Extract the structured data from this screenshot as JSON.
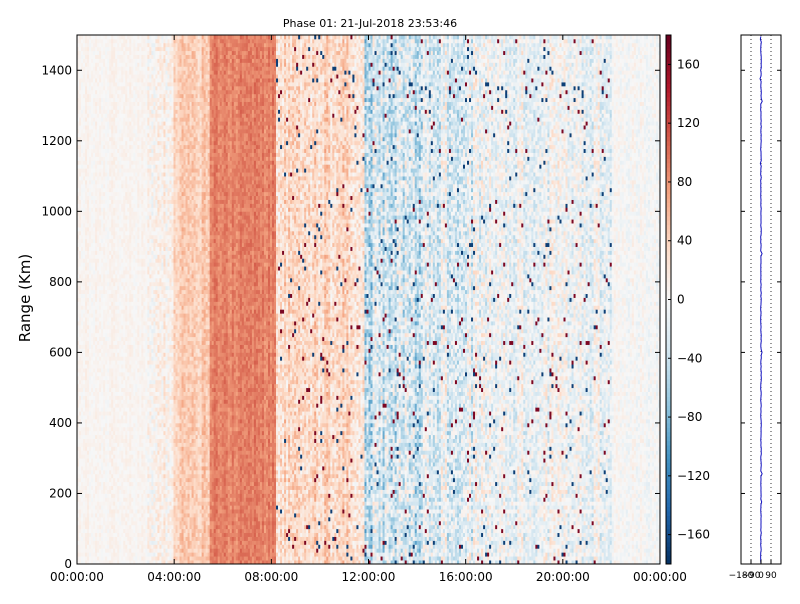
{
  "chart_data": [
    {
      "type": "heatmap",
      "title": "Phase 01: 21-Jul-2018 23:53:46",
      "xlabel": "",
      "ylabel": "Range (Km)",
      "xlim_hours": [
        0,
        24
      ],
      "ylim": [
        0,
        1500
      ],
      "xtick_values": [
        0,
        4,
        8,
        12,
        16,
        20,
        24
      ],
      "xtick_labels": [
        "00:00:00",
        "04:00:00",
        "08:00:00",
        "12:00:00",
        "16:00:00",
        "20:00:00",
        "00:00:00"
      ],
      "ytick_values": [
        0,
        200,
        400,
        600,
        800,
        1000,
        1200,
        1400
      ],
      "ytick_labels": [
        "0",
        "200",
        "400",
        "600",
        "800",
        "1000",
        "1200",
        "1400"
      ],
      "colormap": "RdBu_r",
      "colorbar": {
        "vmin": -180,
        "vmax": 180,
        "tick_values": [
          -160,
          -120,
          -80,
          -40,
          0,
          40,
          80,
          120,
          160
        ],
        "tick_labels": [
          "−160",
          "−120",
          "−80",
          "−40",
          "0",
          "40",
          "80",
          "120",
          "160"
        ]
      },
      "phase_profile_by_time_block": [
        {
          "from_hour": 0.0,
          "to_hour": 2.9,
          "mean_phase_deg": 5,
          "spread_deg": 15
        },
        {
          "from_hour": 2.9,
          "to_hour": 4.0,
          "mean_phase_deg": 12,
          "spread_deg": 40
        },
        {
          "from_hour": 4.0,
          "to_hour": 5.5,
          "mean_phase_deg": 45,
          "spread_deg": 35
        },
        {
          "from_hour": 5.5,
          "to_hour": 8.2,
          "mean_phase_deg": 90,
          "spread_deg": 25
        },
        {
          "from_hour": 8.2,
          "to_hour": 11.8,
          "mean_phase_deg": 35,
          "spread_deg": 55
        },
        {
          "from_hour": 11.8,
          "to_hour": 14.2,
          "mean_phase_deg": -35,
          "spread_deg": 90
        },
        {
          "from_hour": 14.2,
          "to_hour": 17.0,
          "mean_phase_deg": -15,
          "spread_deg": 75
        },
        {
          "from_hour": 17.0,
          "to_hour": 22.0,
          "mean_phase_deg": -5,
          "spread_deg": 60
        },
        {
          "from_hour": 22.0,
          "to_hour": 24.0,
          "mean_phase_deg": 0,
          "spread_deg": 25
        }
      ]
    },
    {
      "type": "line",
      "title": "",
      "xlabel": "",
      "ylabel": "",
      "xlim": [
        -180,
        180
      ],
      "ylim": [
        0,
        1500
      ],
      "xtick_values": [
        -180,
        -90,
        0,
        90
      ],
      "xtick_labels": [
        "−180",
        "−90",
        "0",
        "90"
      ],
      "dotted_reference_lines": [
        -180,
        -90,
        0,
        90
      ],
      "series": [
        {
          "x_mean": 0,
          "x_jitter": 3,
          "y_range": [
            0,
            1500
          ]
        }
      ]
    }
  ]
}
